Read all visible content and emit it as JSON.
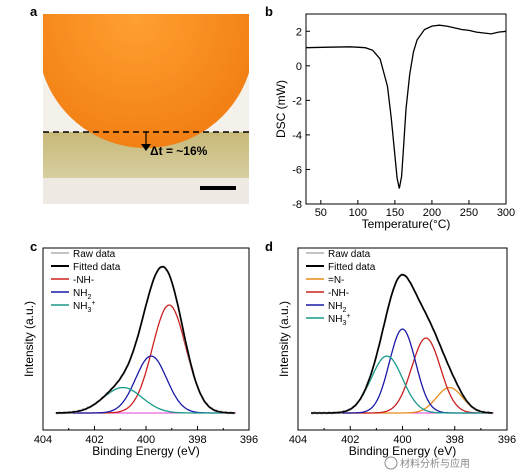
{
  "panels": {
    "a": {
      "letter": "a",
      "annotation": "Δt = ~16%"
    },
    "b": {
      "letter": "b"
    },
    "c": {
      "letter": "c"
    },
    "d": {
      "letter": "d"
    }
  },
  "watermark": "材料分析与应用",
  "colors": {
    "raw": "#b0b0b0",
    "fitted": "#000000",
    "nh_red": "#cc2020",
    "nh2_blue": "#1a1aa8",
    "nh3_teal": "#1a9a8a",
    "n_orange": "#e88a1a",
    "baseline_pink": "#e040d0",
    "droplet": "#f58a1c"
  },
  "chart_data": [
    {
      "panel": "b",
      "type": "line",
      "xlabel": "Temperature(°C)",
      "ylabel": "DSC (mW)",
      "xlim": [
        30,
        300
      ],
      "ylim": [
        -8,
        3
      ],
      "xticks": [
        50,
        100,
        150,
        200,
        250,
        300
      ],
      "yticks": [
        -8,
        -6,
        -4,
        -2,
        0,
        2
      ],
      "series": [
        {
          "x": [
            30,
            60,
            90,
            110,
            120,
            130,
            140,
            145,
            150,
            153,
            156,
            159,
            162,
            165,
            170,
            175,
            180,
            190,
            200,
            210,
            220,
            230,
            240,
            250,
            260,
            270,
            280,
            290,
            300
          ],
          "values": [
            1.05,
            1.08,
            1.1,
            1.05,
            0.9,
            0.4,
            -1.2,
            -3.0,
            -5.2,
            -6.5,
            -7.1,
            -6.4,
            -4.5,
            -2.5,
            -0.5,
            0.8,
            1.5,
            2.1,
            2.3,
            2.35,
            2.3,
            2.2,
            2.1,
            2.05,
            1.95,
            1.9,
            1.85,
            1.95,
            2.0
          ]
        }
      ]
    },
    {
      "panel": "c",
      "type": "line",
      "xlabel": "Binding Energy (eV)",
      "ylabel": "Intensity (a.u.)",
      "xlim": [
        404,
        396
      ],
      "xticks": [
        404,
        402,
        400,
        398,
        396
      ],
      "legend": [
        "Raw data",
        "Fitted data",
        "-NH-",
        "NH2",
        "NH3+"
      ],
      "components": [
        {
          "name": "-NH-",
          "center": 399.1,
          "amplitude": 0.72,
          "sigma": 0.65
        },
        {
          "name": "NH2",
          "center": 399.8,
          "amplitude": 0.38,
          "sigma": 0.6
        },
        {
          "name": "NH3+",
          "center": 400.9,
          "amplitude": 0.17,
          "sigma": 0.75
        }
      ]
    },
    {
      "panel": "d",
      "type": "line",
      "xlabel": "Binding Energy (eV)",
      "ylabel": "Intensity (a.u.)",
      "xlim": [
        404,
        396
      ],
      "xticks": [
        404,
        402,
        400,
        398,
        396
      ],
      "legend": [
        "Raw data",
        "Fitted data",
        "=N-",
        "-NH-",
        "NH2",
        "NH3+"
      ],
      "components": [
        {
          "name": "=N-",
          "center": 398.2,
          "amplitude": 0.17,
          "sigma": 0.5
        },
        {
          "name": "-NH-",
          "center": 399.1,
          "amplitude": 0.5,
          "sigma": 0.55
        },
        {
          "name": "NH2",
          "center": 400.0,
          "amplitude": 0.56,
          "sigma": 0.5
        },
        {
          "name": "NH3+",
          "center": 400.6,
          "amplitude": 0.38,
          "sigma": 0.6
        }
      ]
    }
  ]
}
